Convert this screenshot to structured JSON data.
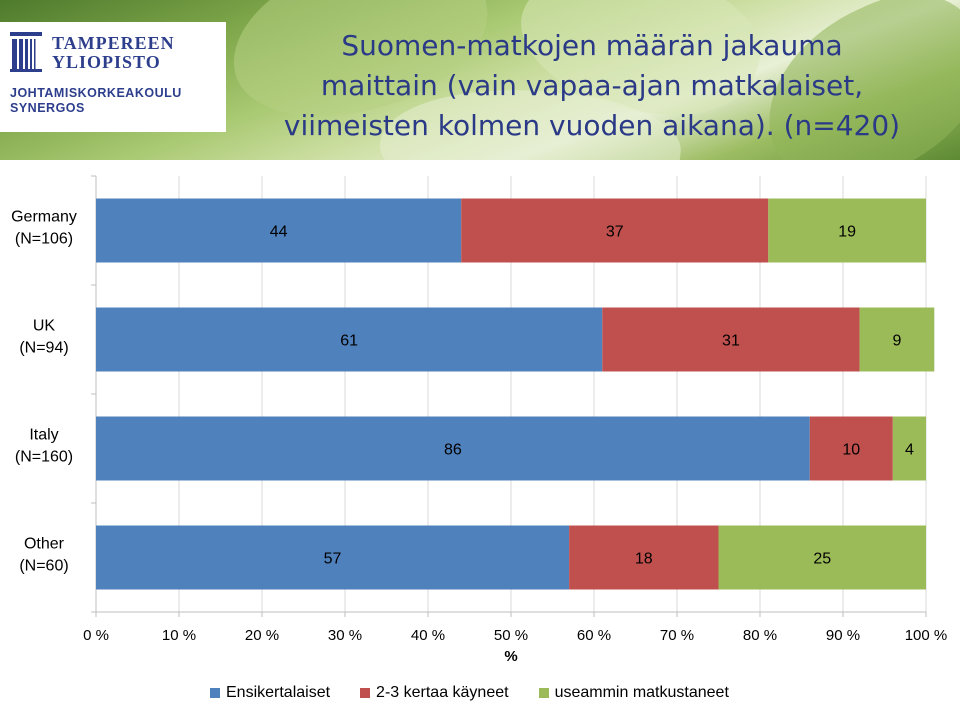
{
  "header": {
    "title_lines": [
      "Suomen-matkojen määrän jakauma",
      "maittain (vain vapaa-ajan matkalaiset,",
      "viimeisten kolmen vuoden aikana). (n=420)"
    ],
    "logo": {
      "name_lines": [
        "TAMPEREEN",
        "YLIOPISTO"
      ],
      "sub_lines": [
        "JOHTAMISKORKEAKOULU",
        "SYNERGOS"
      ]
    }
  },
  "chart_data": {
    "type": "bar",
    "orientation": "horizontal",
    "stacked": true,
    "title": "Suomen-matkojen määrän jakauma maittain (vain vapaa-ajan matkalaiset, viimeisten kolmen vuoden aikana). (n=420)",
    "categories": [
      [
        "Germany",
        "(N=106)"
      ],
      [
        "UK",
        "(N=94)"
      ],
      [
        "Italy",
        "(N=160)"
      ],
      [
        "Other",
        "(N=60)"
      ]
    ],
    "series": [
      {
        "name": "Ensikertalaiset",
        "color": "#4f81bd",
        "values": [
          44,
          61,
          86,
          57
        ]
      },
      {
        "name": "2-3 kertaa käyneet",
        "color": "#c0504d",
        "values": [
          37,
          31,
          10,
          18
        ]
      },
      {
        "name": "useammin matkustaneet",
        "color": "#9bbb59",
        "values": [
          19,
          9,
          4,
          25
        ]
      }
    ],
    "xlabel": "%",
    "xlim": [
      0,
      100
    ],
    "x_ticks": [
      0,
      10,
      20,
      30,
      40,
      50,
      60,
      70,
      80,
      90,
      100
    ],
    "x_tick_labels": [
      "0 %",
      "10 %",
      "20 %",
      "30 %",
      "40 %",
      "50 %",
      "60 %",
      "70 %",
      "80 %",
      "90 %",
      "100 %"
    ],
    "grid": "vertical",
    "grid_color": "#d9d9d9",
    "legend_position": "bottom"
  }
}
